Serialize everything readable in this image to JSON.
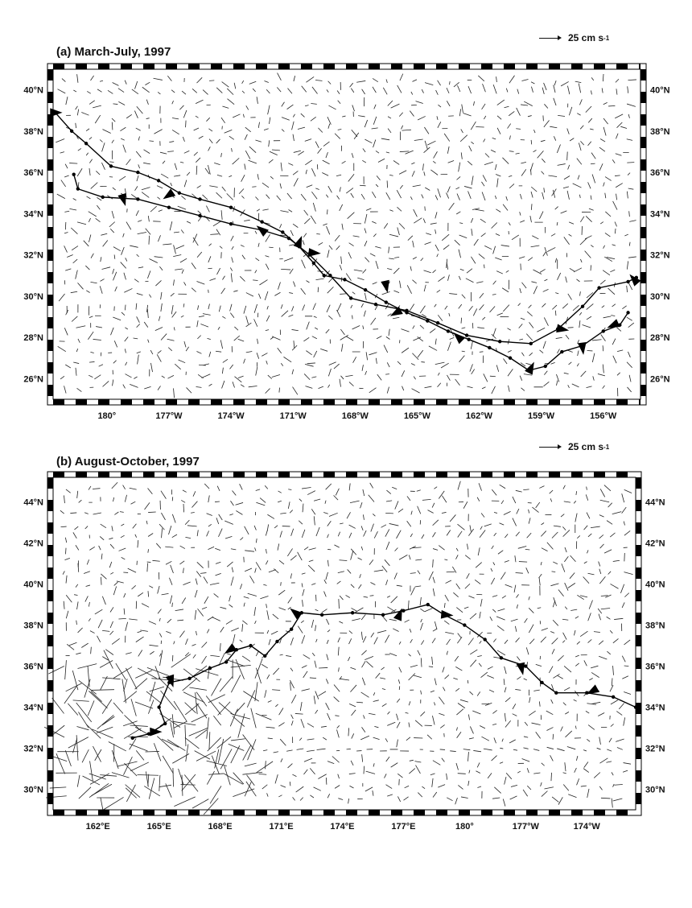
{
  "panels": [
    {
      "title": "(a) March-July, 1997",
      "scale_label": "25 cm s",
      "scale_exp": "-1",
      "lat_labels": [
        "40°N",
        "38°N",
        "36°N",
        "34°N",
        "32°N",
        "30°N",
        "28°N",
        "26°N"
      ],
      "lon_labels": [
        "180°",
        "177°W",
        "174°W",
        "171°W",
        "168°W",
        "165°W",
        "162°W",
        "159°W",
        "156°W"
      ],
      "extent": {
        "lat_min": 25.0,
        "lat_max": 41.0,
        "lon_min": 177.4,
        "lon_max": 205.8
      },
      "lat_ticks": [
        40,
        38,
        36,
        34,
        32,
        30,
        28,
        26
      ],
      "lon_ticks": [
        180,
        183,
        186,
        189,
        192,
        195,
        198,
        201,
        204
      ],
      "track": [
        [
          177.5,
          38.9
        ],
        [
          178.3,
          38.0
        ],
        [
          179.0,
          37.4
        ],
        [
          180.2,
          36.3
        ],
        [
          181.5,
          36.0
        ],
        [
          182.5,
          35.6
        ],
        [
          183.5,
          35.0
        ],
        [
          184.5,
          34.7
        ],
        [
          186.0,
          34.3
        ],
        [
          187.5,
          33.6
        ],
        [
          188.5,
          33.1
        ],
        [
          189.3,
          32.4
        ],
        [
          190.0,
          31.6
        ],
        [
          190.5,
          31.0
        ],
        [
          191.5,
          30.8
        ],
        [
          192.5,
          30.3
        ],
        [
          193.5,
          29.7
        ],
        [
          194.5,
          29.2
        ],
        [
          195.5,
          28.8
        ],
        [
          196.5,
          28.3
        ],
        [
          197.5,
          27.9
        ],
        [
          198.5,
          27.5
        ],
        [
          199.5,
          27.0
        ],
        [
          200.4,
          26.4
        ],
        [
          201.2,
          26.6
        ],
        [
          202.0,
          27.3
        ],
        [
          203.0,
          27.6
        ],
        [
          204.0,
          28.3
        ],
        [
          204.8,
          28.6
        ],
        [
          205.2,
          29.2
        ]
      ],
      "track2": [
        [
          178.4,
          35.9
        ],
        [
          178.6,
          35.2
        ],
        [
          179.8,
          34.8
        ],
        [
          181.5,
          34.7
        ],
        [
          183.0,
          34.3
        ],
        [
          184.5,
          33.9
        ],
        [
          186.0,
          33.5
        ],
        [
          187.5,
          33.2
        ],
        [
          188.8,
          32.8
        ],
        [
          189.8,
          32.0
        ],
        [
          190.8,
          31.0
        ],
        [
          191.8,
          29.9
        ],
        [
          193.0,
          29.6
        ],
        [
          194.5,
          29.3
        ],
        [
          196.0,
          28.7
        ],
        [
          197.4,
          28.1
        ],
        [
          199.0,
          27.8
        ],
        [
          200.5,
          27.7
        ],
        [
          201.8,
          28.4
        ],
        [
          203.0,
          29.5
        ],
        [
          203.8,
          30.4
        ],
        [
          205.2,
          30.7
        ],
        [
          205.6,
          30.9
        ]
      ],
      "arrows": [
        [
          177.5,
          38.9
        ],
        [
          180.8,
          34.7
        ],
        [
          183.0,
          34.9
        ],
        [
          187.5,
          33.2
        ],
        [
          189.3,
          32.6
        ],
        [
          190.0,
          32.1
        ],
        [
          193.5,
          30.5
        ],
        [
          194.0,
          29.2
        ],
        [
          197.0,
          28.0
        ],
        [
          200.5,
          26.5
        ],
        [
          202.0,
          28.4
        ],
        [
          203.0,
          27.5
        ],
        [
          204.5,
          28.6
        ],
        [
          205.5,
          30.8
        ]
      ]
    },
    {
      "title": "(b) August-October, 1997",
      "scale_label": "25 cm s",
      "scale_exp": "-1",
      "lat_labels": [
        "44°N",
        "42°N",
        "40°N",
        "38°N",
        "36°N",
        "34°N",
        "32°N",
        "30°N"
      ],
      "lon_labels": [
        "162°E",
        "165°E",
        "168°E",
        "171°E",
        "174°E",
        "177°E",
        "180°",
        "177°W",
        "174°W"
      ],
      "extent": {
        "lat_min": 29.0,
        "lat_max": 45.2,
        "lon_min": 159.8,
        "lon_max": 188.4
      },
      "lat_ticks": [
        44,
        42,
        40,
        38,
        36,
        34,
        32,
        30
      ],
      "lon_ticks": [
        162,
        165,
        168,
        171,
        174,
        177,
        180,
        183,
        186
      ],
      "track": [
        [
          163.7,
          32.5
        ],
        [
          164.5,
          32.7
        ],
        [
          165.3,
          33.2
        ],
        [
          165.0,
          34.0
        ],
        [
          165.5,
          35.2
        ],
        [
          166.5,
          35.4
        ],
        [
          167.5,
          35.9
        ],
        [
          168.3,
          36.2
        ],
        [
          168.8,
          36.8
        ],
        [
          169.5,
          37.0
        ],
        [
          170.2,
          36.5
        ],
        [
          170.8,
          37.2
        ],
        [
          171.5,
          37.8
        ],
        [
          172.0,
          38.6
        ],
        [
          173.0,
          38.5
        ],
        [
          174.5,
          38.6
        ],
        [
          176.0,
          38.5
        ],
        [
          177.0,
          38.7
        ],
        [
          178.2,
          39.0
        ],
        [
          179.0,
          38.5
        ],
        [
          180.0,
          38.0
        ],
        [
          181.0,
          37.3
        ],
        [
          181.8,
          36.4
        ],
        [
          183.0,
          36.0
        ],
        [
          183.8,
          35.2
        ],
        [
          184.5,
          34.7
        ],
        [
          186.0,
          34.7
        ],
        [
          187.3,
          34.5
        ],
        [
          188.4,
          34.0
        ]
      ],
      "arrows": [
        [
          164.8,
          32.8
        ],
        [
          165.6,
          35.3
        ],
        [
          168.5,
          36.8
        ],
        [
          171.7,
          38.6
        ],
        [
          176.8,
          38.5
        ],
        [
          179.1,
          38.5
        ],
        [
          182.8,
          35.9
        ],
        [
          186.3,
          34.8
        ]
      ]
    }
  ]
}
